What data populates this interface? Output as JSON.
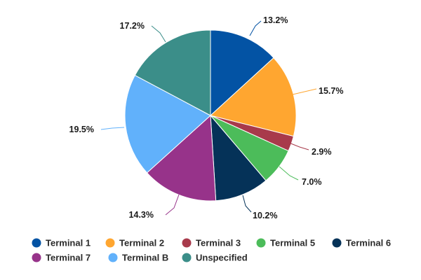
{
  "chart_data": {
    "type": "pie",
    "title": "",
    "slices": [
      {
        "label": "Terminal 1",
        "value": 13.2,
        "display": "13.2%",
        "color": "#0353a4"
      },
      {
        "label": "Terminal 2",
        "value": 15.7,
        "display": "15.7%",
        "color": "#ffa630"
      },
      {
        "label": "Terminal 3",
        "value": 2.9,
        "display": "2.9%",
        "color": "#a83a4b"
      },
      {
        "label": "Terminal 5",
        "value": 7.0,
        "display": "7.0%",
        "color": "#4cbc5a"
      },
      {
        "label": "Terminal 6",
        "value": 10.2,
        "display": "10.2%",
        "color": "#053258"
      },
      {
        "label": "Terminal 7",
        "value": 14.3,
        "display": "14.3%",
        "color": "#97338a"
      },
      {
        "label": "Terminal B",
        "value": 19.5,
        "display": "19.5%",
        "color": "#61b1fb"
      },
      {
        "label": "Unspecified",
        "value": 17.2,
        "display": "17.2%",
        "color": "#3b8e89"
      }
    ],
    "legend": {
      "position": "bottom",
      "rows": [
        [
          "Terminal 1",
          "Terminal 2",
          "Terminal 3",
          "Terminal 5",
          "Terminal 6"
        ],
        [
          "Terminal 7",
          "Terminal B",
          "Unspecified"
        ]
      ]
    }
  }
}
